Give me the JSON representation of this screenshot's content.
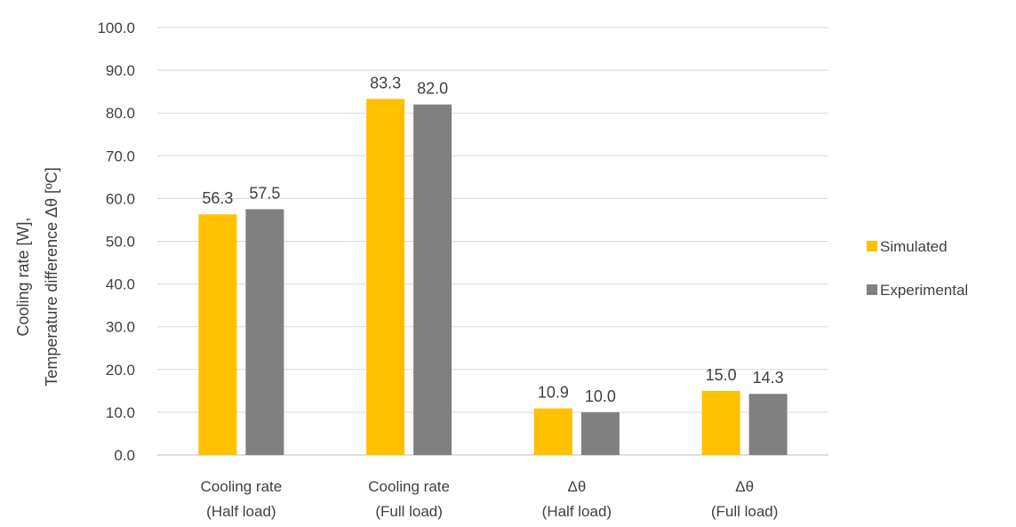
{
  "chart_data": {
    "type": "bar",
    "title": "",
    "ylabel_lines": [
      "Cooling rate [W],",
      "Temperature  difference  Δθ [ºC]"
    ],
    "xlabel": "",
    "ylim": [
      0,
      100
    ],
    "ytick_step": 10,
    "ytick_labels": [
      "0.0",
      "10.0",
      "20.0",
      "30.0",
      "40.0",
      "50.0",
      "60.0",
      "70.0",
      "80.0",
      "90.0",
      "100.0"
    ],
    "categories": [
      [
        "Cooling rate",
        "(Half load)"
      ],
      [
        "Cooling rate",
        "(Full load)"
      ],
      [
        "Δθ",
        "(Half load)"
      ],
      [
        "Δθ",
        "(Full load)"
      ]
    ],
    "series": [
      {
        "name": "Simulated",
        "values": [
          56.3,
          83.3,
          10.9,
          15.0
        ],
        "labels": [
          "56.3",
          "83.3",
          "10.9",
          "15.0"
        ]
      },
      {
        "name": "Experimental",
        "values": [
          57.5,
          82.0,
          10.0,
          14.3
        ],
        "labels": [
          "57.5",
          "82.0",
          "10.0",
          "14.3"
        ]
      }
    ],
    "legend_position": "right",
    "grid": true
  },
  "colors": {
    "simulated": "#FFC000",
    "experimental": "#808080",
    "grid": "#D9D9D9",
    "axis": "#BFBFBF",
    "text": "#404040"
  }
}
